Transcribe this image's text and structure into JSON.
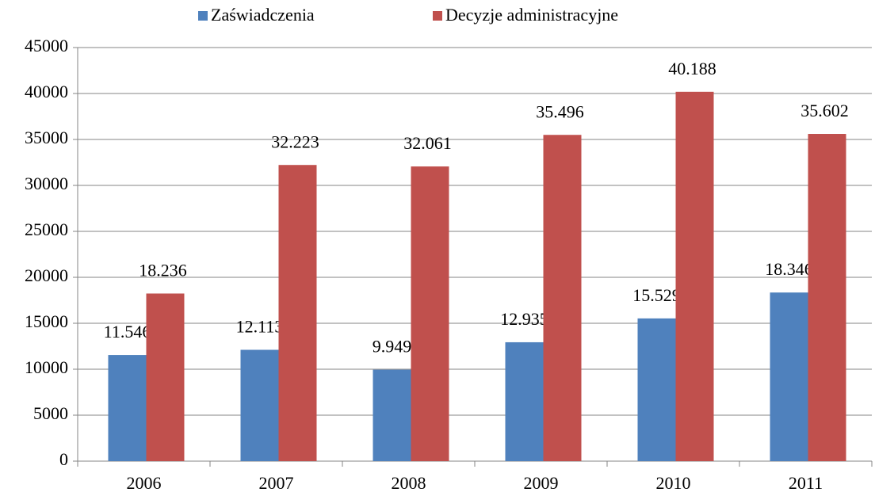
{
  "chart_data": {
    "type": "bar",
    "categories": [
      "2006",
      "2007",
      "2008",
      "2009",
      "2010",
      "2011"
    ],
    "series": [
      {
        "name": "Zaświadczenia",
        "color": "#4f81bd",
        "values": [
          11546,
          12113,
          9949,
          12935,
          15529,
          18346
        ],
        "value_labels": [
          "11.546",
          "12.113",
          "9.949",
          "12.935",
          "15.529",
          "18.346"
        ]
      },
      {
        "name": "Decyzje administracyjne",
        "color": "#c0504d",
        "values": [
          18236,
          32223,
          32061,
          35496,
          40188,
          35602
        ],
        "value_labels": [
          "18.236",
          "32.223",
          "32.061",
          "35.496",
          "40.188",
          "35.602"
        ]
      }
    ],
    "ylim": [
      0,
      45000
    ],
    "yticks": [
      0,
      5000,
      10000,
      15000,
      20000,
      25000,
      30000,
      35000,
      40000,
      45000
    ],
    "grid": true,
    "legend": "top"
  }
}
